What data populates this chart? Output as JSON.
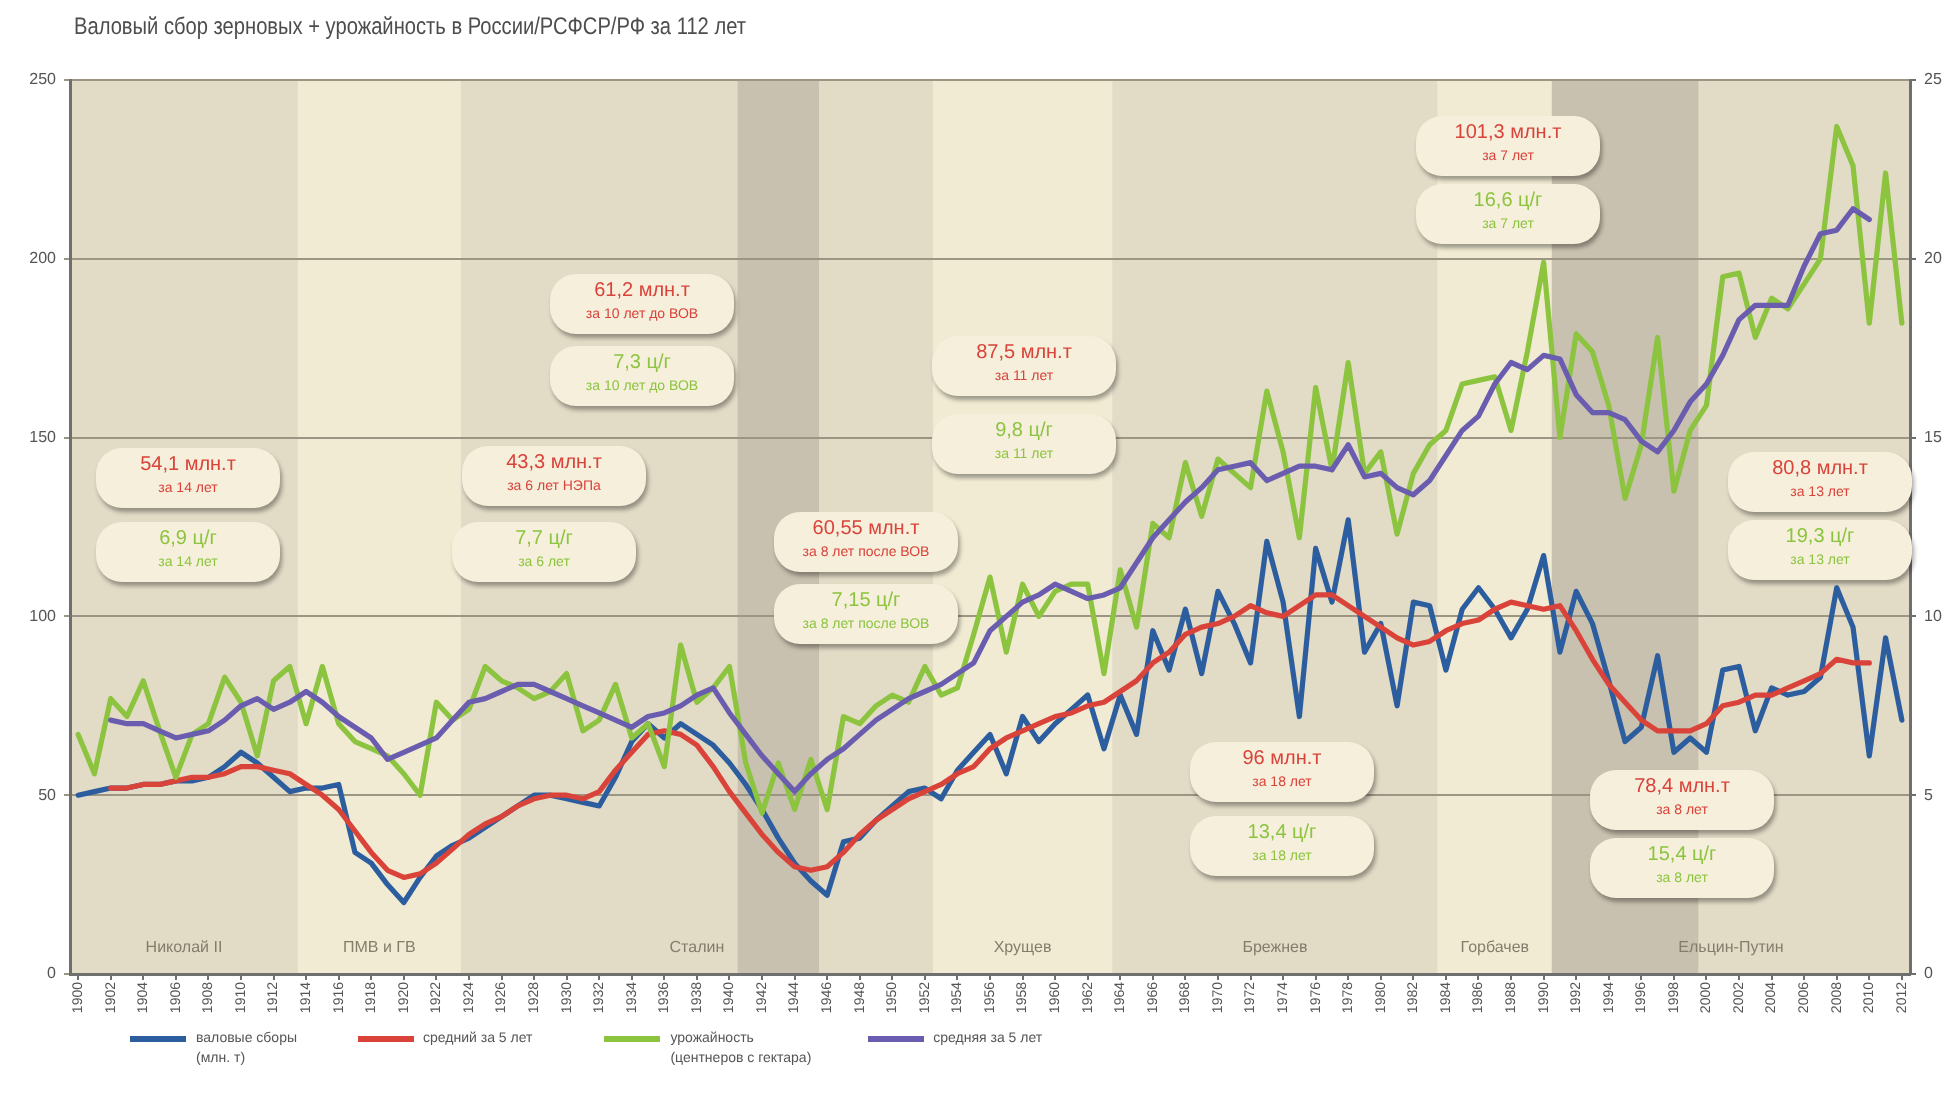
{
  "chart_data": {
    "type": "line",
    "title": "Валовый сбор зерновых + урожайность в России/РСФСР/РФ за 112 лет",
    "x": [
      1900,
      1901,
      1902,
      1903,
      1904,
      1905,
      1906,
      1907,
      1908,
      1909,
      1910,
      1911,
      1912,
      1913,
      1914,
      1915,
      1916,
      1917,
      1918,
      1919,
      1920,
      1921,
      1922,
      1923,
      1924,
      1925,
      1926,
      1927,
      1928,
      1929,
      1930,
      1931,
      1932,
      1933,
      1934,
      1935,
      1936,
      1937,
      1938,
      1939,
      1940,
      1941,
      1942,
      1943,
      1944,
      1945,
      1946,
      1947,
      1948,
      1949,
      1950,
      1951,
      1952,
      1953,
      1954,
      1955,
      1956,
      1957,
      1958,
      1959,
      1960,
      1961,
      1962,
      1963,
      1964,
      1965,
      1966,
      1967,
      1968,
      1969,
      1970,
      1971,
      1972,
      1973,
      1974,
      1975,
      1976,
      1977,
      1978,
      1979,
      1980,
      1981,
      1982,
      1983,
      1984,
      1985,
      1986,
      1987,
      1988,
      1989,
      1990,
      1991,
      1992,
      1993,
      1994,
      1995,
      1996,
      1997,
      1998,
      1999,
      2000,
      2001,
      2002,
      2003,
      2004,
      2005,
      2006,
      2007,
      2008,
      2009,
      2010,
      2011,
      2012
    ],
    "xlim": [
      1899.5,
      2012.5
    ],
    "xticks": [
      1900,
      1902,
      1904,
      1906,
      1908,
      1910,
      1912,
      1914,
      1916,
      1918,
      1920,
      1922,
      1924,
      1926,
      1928,
      1930,
      1932,
      1934,
      1936,
      1938,
      1940,
      1942,
      1944,
      1946,
      1948,
      1950,
      1952,
      1954,
      1956,
      1958,
      1960,
      1962,
      1964,
      1966,
      1968,
      1970,
      1972,
      1974,
      1976,
      1978,
      1980,
      1982,
      1984,
      1986,
      1988,
      1990,
      1992,
      1994,
      1996,
      1998,
      2000,
      2002,
      2004,
      2006,
      2008,
      2010,
      2012
    ],
    "ylim": [
      0,
      250
    ],
    "yticks": [
      0,
      50,
      100,
      150,
      200,
      250
    ],
    "y2lim": [
      0,
      25
    ],
    "y2ticks": [
      0,
      5,
      10,
      15,
      20,
      25
    ],
    "grid": "y",
    "legend": "bottom",
    "series": [
      {
        "name": "валовые сборы (млн. т)",
        "color": "#2c5d9f",
        "values": [
          50,
          51,
          52,
          52,
          53,
          53,
          54,
          54,
          55,
          58,
          62,
          59,
          55,
          51,
          52,
          52,
          53,
          34,
          31,
          25,
          20,
          27,
          33,
          36,
          38,
          41,
          44,
          47,
          50,
          50,
          49,
          48,
          47,
          55,
          65,
          70,
          66,
          70,
          67,
          64,
          59,
          53,
          46,
          38,
          31,
          26,
          22,
          37,
          38,
          43,
          47,
          51,
          52,
          49,
          57,
          62,
          67,
          56,
          72,
          65,
          70,
          74,
          78,
          63,
          78,
          67,
          96,
          85,
          102,
          84,
          107,
          98,
          87,
          121,
          104,
          72,
          119,
          104,
          127,
          90,
          98,
          75,
          104,
          103,
          85,
          102,
          108,
          102,
          94,
          102,
          117,
          90,
          107,
          98,
          82,
          65,
          69,
          89,
          62,
          66,
          62,
          85,
          86,
          68,
          80,
          78,
          79,
          83,
          108,
          97,
          61,
          94,
          71
        ]
      },
      {
        "name": "средний за 5 лет",
        "color": "#d9433a",
        "values": [
          null,
          null,
          52,
          52,
          53,
          53,
          54,
          55,
          55,
          56,
          58,
          58,
          57,
          56,
          53,
          50,
          46,
          40,
          34,
          29,
          27,
          28,
          31,
          35,
          39,
          42,
          44,
          47,
          49,
          50,
          50,
          49,
          51,
          57,
          62,
          67,
          68,
          67,
          64,
          58,
          51,
          45,
          39,
          34,
          30,
          29,
          30,
          34,
          39,
          43,
          46,
          49,
          51,
          53,
          56,
          58,
          63,
          66,
          68,
          70,
          72,
          73,
          75,
          76,
          79,
          82,
          87,
          90,
          95,
          97,
          98,
          100,
          103,
          101,
          100,
          103,
          106,
          106,
          103,
          100,
          97,
          94,
          92,
          93,
          96,
          98,
          99,
          102,
          104,
          103,
          102,
          103,
          96,
          88,
          81,
          76,
          71,
          68,
          68,
          68,
          70,
          75,
          76,
          78,
          78,
          80,
          82,
          84,
          88,
          87,
          87,
          null,
          null
        ]
      },
      {
        "name": "урожайность (центнеров с гектара)",
        "color": "#8cc43f",
        "axis": "y2",
        "values": [
          6.7,
          5.6,
          7.7,
          7.2,
          8.2,
          6.8,
          5.5,
          6.7,
          7.0,
          8.3,
          7.6,
          6.1,
          8.2,
          8.6,
          7.0,
          8.6,
          7.0,
          6.5,
          6.3,
          6.1,
          5.6,
          5.0,
          7.6,
          7.1,
          7.4,
          8.6,
          8.2,
          8.0,
          7.7,
          7.9,
          8.4,
          6.8,
          7.1,
          8.1,
          6.6,
          7.0,
          5.8,
          9.2,
          7.6,
          8.0,
          8.6,
          5.9,
          4.5,
          5.9,
          4.6,
          6.0,
          4.6,
          7.2,
          7.0,
          7.5,
          7.8,
          7.6,
          8.6,
          7.8,
          8.0,
          9.5,
          11.1,
          9.0,
          10.9,
          10.0,
          10.7,
          10.9,
          10.9,
          8.4,
          11.3,
          9.7,
          12.6,
          12.2,
          14.3,
          12.8,
          14.4,
          14.0,
          13.6,
          16.3,
          14.6,
          12.2,
          16.4,
          14.1,
          17.1,
          14.0,
          14.6,
          12.3,
          14.0,
          14.8,
          15.2,
          16.5,
          16.6,
          16.7,
          15.2,
          17.4,
          19.9,
          15.0,
          17.9,
          17.4,
          15.9,
          13.3,
          14.8,
          17.8,
          13.5,
          15.2,
          15.9,
          19.5,
          19.6,
          17.8,
          18.9,
          18.6,
          19.3,
          20.0,
          23.7,
          22.6,
          18.2,
          22.4,
          18.2
        ]
      },
      {
        "name": "средняя за 5 лет",
        "color": "#6a5cae",
        "axis": "y2",
        "values": [
          null,
          null,
          7.1,
          7.0,
          7.0,
          6.8,
          6.6,
          6.7,
          6.8,
          7.1,
          7.5,
          7.7,
          7.4,
          7.6,
          7.9,
          7.6,
          7.2,
          6.9,
          6.6,
          6.0,
          6.2,
          6.4,
          6.6,
          7.1,
          7.6,
          7.7,
          7.9,
          8.1,
          8.1,
          7.9,
          7.7,
          7.5,
          7.3,
          7.1,
          6.9,
          7.2,
          7.3,
          7.5,
          7.8,
          8.0,
          7.3,
          6.7,
          6.1,
          5.6,
          5.1,
          5.6,
          6.0,
          6.3,
          6.7,
          7.1,
          7.4,
          7.7,
          7.9,
          8.1,
          8.4,
          8.7,
          9.6,
          10.0,
          10.4,
          10.6,
          10.9,
          10.7,
          10.5,
          10.6,
          10.8,
          11.5,
          12.2,
          12.7,
          13.2,
          13.6,
          14.1,
          14.2,
          14.3,
          13.8,
          14.0,
          14.2,
          14.2,
          14.1,
          14.8,
          13.9,
          14.0,
          13.6,
          13.4,
          13.8,
          14.5,
          15.2,
          15.6,
          16.5,
          17.1,
          16.9,
          17.3,
          17.2,
          16.2,
          15.7,
          15.7,
          15.5,
          14.9,
          14.6,
          15.2,
          16.0,
          16.5,
          17.3,
          18.3,
          18.7,
          18.7,
          18.7,
          19.8,
          20.7,
          20.8,
          21.4,
          21.1,
          null,
          null
        ]
      }
    ],
    "bands": [
      {
        "axis": "x",
        "from": 1899.5,
        "to": 1913.5,
        "label": "Николай II",
        "color": "#e2dbc6"
      },
      {
        "axis": "x",
        "from": 1913.5,
        "to": 1923.5,
        "label": "ПМВ и ГВ",
        "color": "#f1ebd3"
      },
      {
        "axis": "x",
        "from": 1923.5,
        "to": 1952.5,
        "label": "Сталин",
        "color": "#e2dbc6"
      },
      {
        "axis": "x",
        "from": 1940.5,
        "to": 1945.5,
        "color": "#c9c1af"
      },
      {
        "axis": "x",
        "from": 1952.5,
        "to": 1963.5,
        "label": "Хрущев",
        "color": "#f1ebd3"
      },
      {
        "axis": "x",
        "from": 1963.5,
        "to": 1983.5,
        "label": "Брежнев",
        "color": "#e2dbc6"
      },
      {
        "axis": "x",
        "from": 1983.5,
        "to": 1990.5,
        "label": "Горбачев",
        "color": "#f1ebd3"
      },
      {
        "axis": "x",
        "from": 1990.5,
        "to": 2012.5,
        "label": "Ельцин-Путин",
        "color": "#e2dbc6"
      },
      {
        "axis": "x",
        "from": 1990.5,
        "to": 1999.5,
        "color": "#c9c1af"
      }
    ],
    "annotations": [
      "54,1 млн.т\nза 14 лет",
      "6,9 ц/г\nза 14 лет",
      "61,2 млн.т\nза 10 лет до ВОВ",
      "7,3 ц/г\nза 10 лет до ВОВ",
      "43,3 млн.т\nза 6 лет НЭПа",
      "7,7 ц/г\nза 6 лет",
      "60,55 млн.т\nза 8 лет после ВОВ",
      "7,15 ц/г\nза 8 лет после ВОВ",
      "87,5 млн.т\nза 11 лет",
      "9,8 ц/г\nза 11 лет",
      "101,3 млн.т\nза 7 лет",
      "16,6 ц/г\nза 7 лет",
      "96 млн.т\nза 18 лет",
      "13,4 ц/г\nза 18 лет",
      "78,4 млн.т\nза 8 лет",
      "15,4 ц/г\nза 8 лет",
      "80,8 млн.т\nза 13 лет",
      "19,3 ц/г\nза 13 лет"
    ]
  }
}
